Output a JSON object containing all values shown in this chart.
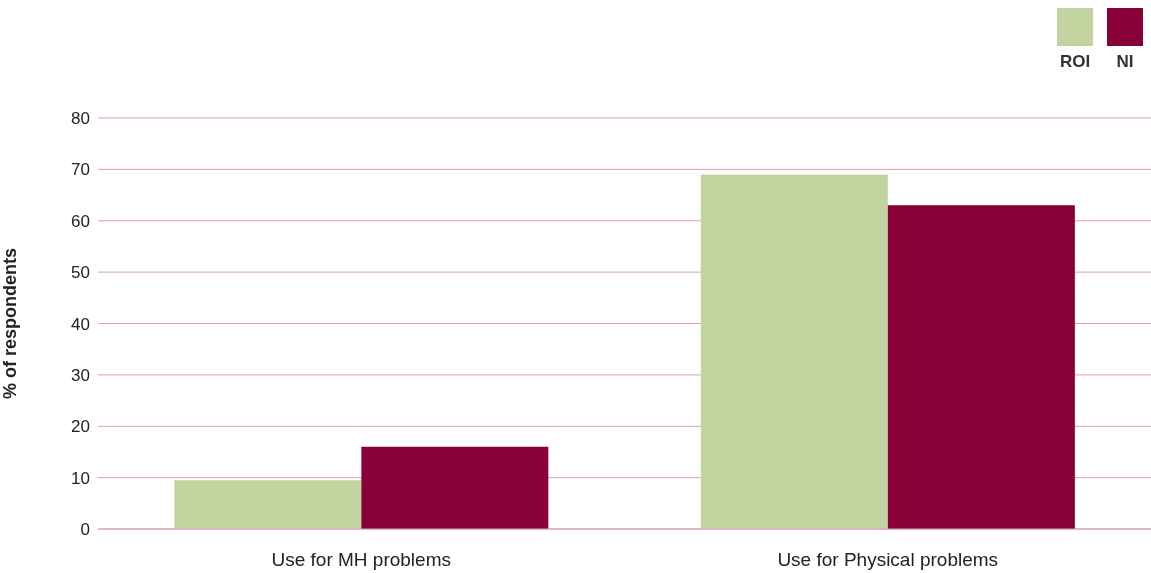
{
  "chart_data": {
    "type": "bar",
    "ylabel": "% of respondents",
    "categories": [
      "Use for MH problems",
      "Use for Physical problems"
    ],
    "series": [
      {
        "name": "ROI",
        "color": "#c3d3a0",
        "values": [
          9.5,
          69
        ]
      },
      {
        "name": "NI",
        "color": "#890038",
        "values": [
          16,
          63
        ]
      }
    ],
    "ylim": [
      0,
      80
    ],
    "yticks": [
      0,
      10,
      20,
      30,
      40,
      50,
      60,
      70,
      80
    ],
    "grid": "y",
    "legend": "top right"
  }
}
